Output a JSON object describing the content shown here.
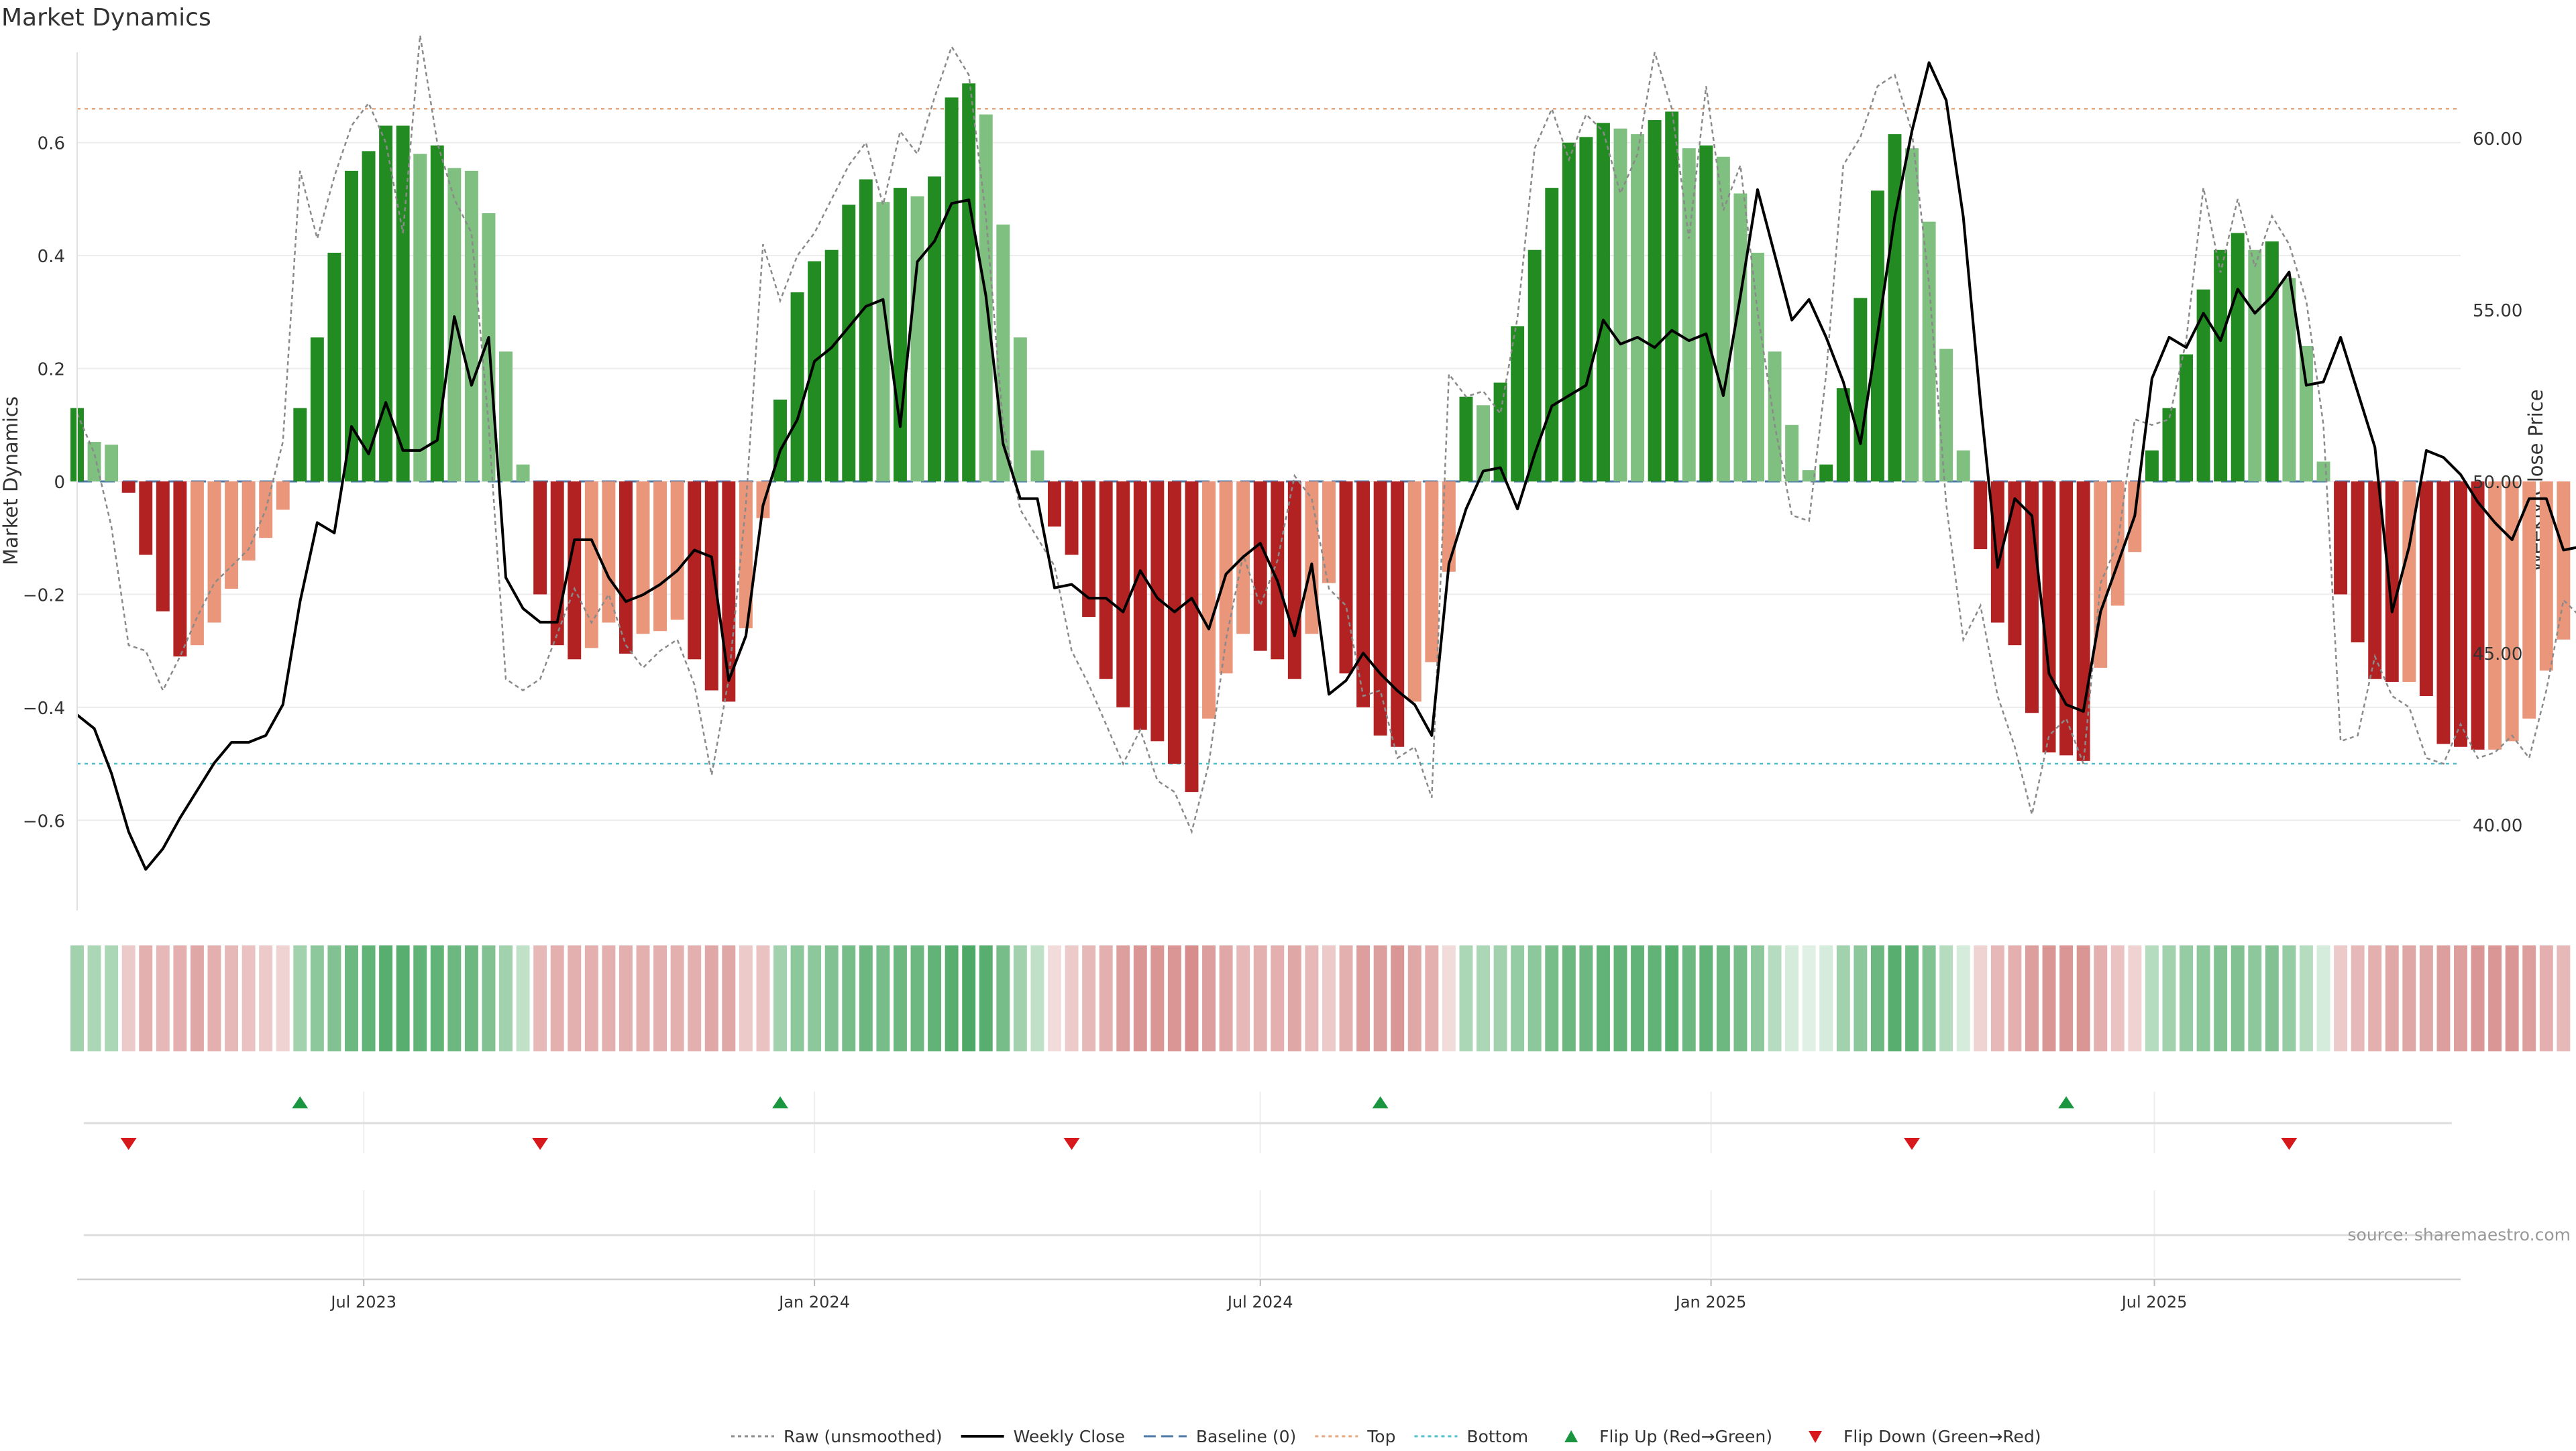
{
  "title": "Market Dynamics",
  "source_note": "source: sharemaestro.com",
  "chart_data": {
    "type": "bar",
    "title": "Market Dynamics",
    "ylabel": "Market Dynamics",
    "y2label": "Weekly Close Price",
    "ylim": [
      -0.76,
      0.76
    ],
    "y2lim": [
      37.5,
      62.5
    ],
    "yticks": [
      -0.6,
      -0.4,
      -0.2,
      0,
      0.2,
      0.4,
      0.6
    ],
    "ytick_labels": [
      "−0.6",
      "−0.4",
      "−0.2",
      "0",
      "0.2",
      "0.4",
      "0.6"
    ],
    "y2ticks": [
      40,
      45,
      50,
      55,
      60
    ],
    "y2tick_labels": [
      "40.00",
      "45.00",
      "50.00",
      "55.00",
      "60.00"
    ],
    "x_start": "2023-03-06",
    "x_end": "2025-10-27",
    "x_axis_start": "2023-03-06",
    "x_axis_end": "2025-11-03",
    "xtick_labels": [
      {
        "date": "2023-07-01",
        "label": "Jul 2023"
      },
      {
        "date": "2024-01-01",
        "label": "Jan 2024"
      },
      {
        "date": "2024-07-01",
        "label": "Jul 2024"
      },
      {
        "date": "2025-01-01",
        "label": "Jan 2025"
      },
      {
        "date": "2025-07-01",
        "label": "Jul 2025"
      }
    ],
    "top": 0.66,
    "bottom": -0.5,
    "baseline": 0,
    "colors": {
      "strong_up": "#228b22",
      "weak_up": "#7fbf7f",
      "strong_down": "#b22222",
      "weak_down": "#e9967a",
      "close": "#000000",
      "raw": "#8a8a8a",
      "baseline": "#4c79a6",
      "top": "#e6a77f",
      "bottom": "#4fbfc9",
      "flip_up": "#1a9641",
      "flip_down": "#d7191c"
    },
    "series": [
      {
        "name": "Market Dynamics",
        "values": [
          0.13,
          0.07,
          0.065,
          -0.02,
          -0.13,
          -0.23,
          -0.31,
          -0.29,
          -0.25,
          -0.19,
          -0.14,
          -0.1,
          -0.05,
          0.13,
          0.255,
          0.405,
          0.55,
          0.585,
          0.63,
          0.63,
          0.58,
          0.595,
          0.555,
          0.55,
          0.475,
          0.23,
          0.03,
          -0.2,
          -0.29,
          -0.315,
          -0.295,
          -0.25,
          -0.305,
          -0.27,
          -0.265,
          -0.245,
          -0.315,
          -0.37,
          -0.39,
          -0.26,
          -0.065,
          0.145,
          0.335,
          0.39,
          0.41,
          0.49,
          0.535,
          0.495,
          0.52,
          0.505,
          0.54,
          0.68,
          0.705,
          0.65,
          0.455,
          0.255,
          0.055,
          -0.08,
          -0.13,
          -0.24,
          -0.35,
          -0.4,
          -0.44,
          -0.46,
          -0.5,
          -0.55,
          -0.42,
          -0.34,
          -0.27,
          -0.3,
          -0.315,
          -0.35,
          -0.27,
          -0.18,
          -0.34,
          -0.4,
          -0.45,
          -0.47,
          -0.39,
          -0.32,
          -0.16,
          0.15,
          0.135,
          0.175,
          0.275,
          0.41,
          0.52,
          0.6,
          0.61,
          0.635,
          0.625,
          0.615,
          0.64,
          0.655,
          0.59,
          0.595,
          0.575,
          0.51,
          0.405,
          0.23,
          0.1,
          0.02,
          0.03,
          0.165,
          0.325,
          0.515,
          0.615,
          0.59,
          0.46,
          0.235,
          0.055,
          -0.12,
          -0.25,
          -0.29,
          -0.41,
          -0.48,
          -0.485,
          -0.495,
          -0.33,
          -0.22,
          -0.125,
          0.055,
          0.13,
          0.225,
          0.34,
          0.41,
          0.44,
          0.41,
          0.425,
          0.36,
          0.24,
          0.035,
          -0.2,
          -0.285,
          -0.35,
          -0.355,
          -0.355,
          -0.38,
          -0.465,
          -0.47,
          -0.475,
          -0.475,
          -0.46,
          -0.42,
          -0.335,
          -0.28
        ]
      },
      {
        "name": "Weekly Close",
        "values": [
          43.2,
          42.8,
          41.5,
          39.8,
          38.7,
          39.3,
          40.2,
          41,
          41.8,
          42.4,
          42.4,
          42.6,
          43.5,
          46.5,
          48.8,
          48.5,
          51.6,
          50.8,
          52.3,
          50.9,
          50.9,
          51.2,
          54.8,
          52.8,
          54.2,
          47.2,
          46.3,
          45.9,
          45.9,
          48.3,
          48.3,
          47.2,
          46.5,
          46.7,
          47,
          47.4,
          48,
          47.8,
          44.2,
          45.5,
          49.3,
          50.9,
          51.8,
          53.5,
          53.9,
          54.5,
          55.1,
          55.3,
          51.6,
          56.4,
          57,
          58.1,
          58.2,
          55.4,
          51.1,
          49.5,
          49.5,
          46.9,
          47,
          46.6,
          46.6,
          46.2,
          47.4,
          46.6,
          46.2,
          46.6,
          45.7,
          47.3,
          47.8,
          48.2,
          47.1,
          45.5,
          47.6,
          43.8,
          44.2,
          45,
          44.4,
          43.9,
          43.5,
          42.6,
          47.6,
          49.2,
          50.3,
          50.4,
          49.2,
          50.8,
          52.2,
          52.5,
          52.8,
          54.7,
          54,
          54.2,
          53.9,
          54.4,
          54.1,
          54.3,
          52.5,
          55.4,
          58.5,
          56.6,
          54.7,
          55.3,
          54.2,
          52.9,
          51.1,
          54.3,
          57.7,
          60.2,
          62.2,
          61.1,
          57.7,
          52.3,
          47.5,
          49.5,
          49,
          44.4,
          43.5,
          43.3,
          46.2,
          47.6,
          49,
          53,
          54.2,
          53.9,
          54.9,
          54.1,
          55.6,
          54.9,
          55.4,
          56.1,
          52.8,
          52.9,
          54.2,
          52.6,
          51,
          46.2,
          48.1,
          50.9,
          50.7,
          50.2,
          49.4,
          48.8,
          48.3,
          49.5,
          49.5,
          48,
          48.1,
          50.3,
          50.4,
          47.3
        ]
      },
      {
        "name": "Raw (unsmoothed)",
        "values": [
          0.12,
          0.05,
          -0.08,
          -0.29,
          -0.3,
          -0.37,
          -0.31,
          -0.24,
          -0.18,
          -0.15,
          -0.12,
          -0.05,
          0.07,
          0.55,
          0.43,
          0.54,
          0.63,
          0.67,
          0.6,
          0.44,
          0.79,
          0.6,
          0.5,
          0.44,
          0.1,
          -0.35,
          -0.37,
          -0.35,
          -0.27,
          -0.19,
          -0.25,
          -0.2,
          -0.29,
          -0.33,
          -0.3,
          -0.28,
          -0.36,
          -0.52,
          -0.35,
          -0.04,
          0.42,
          0.32,
          0.4,
          0.44,
          0.5,
          0.56,
          0.6,
          0.49,
          0.62,
          0.58,
          0.68,
          0.77,
          0.72,
          0.47,
          0.1,
          -0.05,
          -0.1,
          -0.15,
          -0.3,
          -0.36,
          -0.43,
          -0.5,
          -0.44,
          -0.53,
          -0.55,
          -0.62,
          -0.5,
          -0.28,
          -0.13,
          -0.22,
          -0.14,
          0.01,
          -0.03,
          -0.19,
          -0.22,
          -0.38,
          -0.37,
          -0.49,
          -0.47,
          -0.56,
          0.19,
          0.15,
          0.16,
          0.12,
          0.29,
          0.59,
          0.66,
          0.57,
          0.65,
          0.62,
          0.51,
          0.58,
          0.76,
          0.66,
          0.43,
          0.7,
          0.48,
          0.56,
          0.3,
          0.1,
          -0.06,
          -0.07,
          0.19,
          0.56,
          0.61,
          0.7,
          0.72,
          0.62,
          0.35,
          -0.04,
          -0.28,
          -0.22,
          -0.38,
          -0.47,
          -0.59,
          -0.45,
          -0.42,
          -0.5,
          -0.18,
          -0.11,
          0.11,
          0.1,
          0.11,
          0.25,
          0.52,
          0.37,
          0.5,
          0.38,
          0.47,
          0.42,
          0.32,
          0.1,
          -0.46,
          -0.45,
          -0.31,
          -0.38,
          -0.4,
          -0.49,
          -0.5,
          -0.43,
          -0.49,
          -0.48,
          -0.45,
          -0.49,
          -0.37,
          -0.21,
          -0.24
        ]
      }
    ],
    "strip_shade": [
      0.45,
      0.4,
      0.4,
      0.3,
      0.45,
      0.4,
      0.45,
      0.5,
      0.45,
      0.4,
      0.35,
      0.3,
      0.25,
      0.45,
      0.55,
      0.6,
      0.7,
      0.75,
      0.8,
      0.8,
      0.75,
      0.75,
      0.7,
      0.7,
      0.6,
      0.45,
      0.3,
      0.4,
      0.45,
      0.45,
      0.45,
      0.45,
      0.45,
      0.45,
      0.45,
      0.45,
      0.45,
      0.5,
      0.5,
      0.3,
      0.35,
      0.45,
      0.55,
      0.55,
      0.6,
      0.65,
      0.7,
      0.65,
      0.7,
      0.7,
      0.75,
      0.8,
      0.85,
      0.8,
      0.65,
      0.45,
      0.3,
      0.2,
      0.3,
      0.4,
      0.45,
      0.55,
      0.6,
      0.6,
      0.6,
      0.65,
      0.55,
      0.5,
      0.4,
      0.45,
      0.45,
      0.5,
      0.4,
      0.3,
      0.45,
      0.55,
      0.55,
      0.6,
      0.5,
      0.45,
      0.2,
      0.4,
      0.4,
      0.45,
      0.5,
      0.55,
      0.65,
      0.7,
      0.7,
      0.75,
      0.75,
      0.75,
      0.75,
      0.8,
      0.7,
      0.75,
      0.7,
      0.65,
      0.55,
      0.35,
      0.2,
      0.15,
      0.2,
      0.45,
      0.55,
      0.7,
      0.8,
      0.75,
      0.6,
      0.35,
      0.2,
      0.25,
      0.4,
      0.45,
      0.55,
      0.6,
      0.6,
      0.6,
      0.45,
      0.35,
      0.25,
      0.35,
      0.45,
      0.5,
      0.55,
      0.6,
      0.6,
      0.55,
      0.6,
      0.5,
      0.35,
      0.2,
      0.3,
      0.4,
      0.45,
      0.5,
      0.5,
      0.5,
      0.55,
      0.55,
      0.6,
      0.6,
      0.6,
      0.55,
      0.45,
      0.4
    ],
    "flip_up_dates": [
      "2023-06-05",
      "2023-12-18",
      "2024-08-19",
      "2025-05-26"
    ],
    "flip_down_dates": [
      "2023-03-27",
      "2023-09-11",
      "2024-04-15",
      "2025-03-24",
      "2025-08-25"
    ],
    "legend": [
      {
        "label": "Raw (unsmoothed)",
        "kind": "dotted-line",
        "color": "#8a8a8a"
      },
      {
        "label": "Weekly Close",
        "kind": "solid-line",
        "color": "#000000"
      },
      {
        "label": "Baseline (0)",
        "kind": "dashed-line",
        "color": "#4c79a6"
      },
      {
        "label": "Top",
        "kind": "dotted-line",
        "color": "#e6a77f"
      },
      {
        "label": "Bottom",
        "kind": "dotted-line",
        "color": "#4fbfc9"
      },
      {
        "label": "Flip Up (Red→Green)",
        "kind": "triangle-up",
        "color": "#1a9641"
      },
      {
        "label": "Flip Down (Green→Red)",
        "kind": "triangle-down",
        "color": "#d7191c"
      }
    ],
    "legend_position": "bottom-center",
    "grid": true
  }
}
